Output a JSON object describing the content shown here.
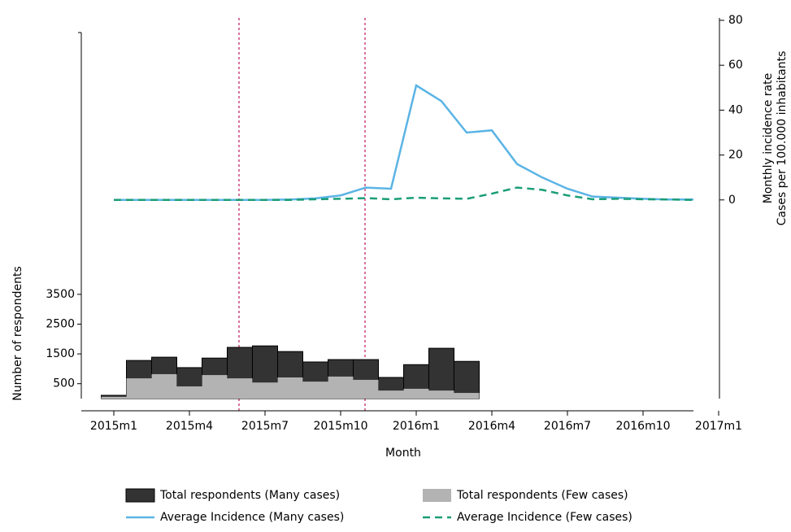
{
  "chart_data": {
    "type": "combo",
    "x_label": "Month",
    "y_label": "Number of respondents",
    "y2_label": [
      "Monthly incidence rate",
      "Cases per 100.000 inhabitants"
    ],
    "categories": [
      "2015m1",
      null,
      null,
      "2015m4",
      null,
      null,
      "2015m7",
      null,
      null,
      "2015m10",
      null,
      null,
      "2016m1",
      null,
      null,
      "2016m4",
      null,
      null,
      "2016m7",
      null,
      null,
      "2016m10",
      null,
      null,
      "2017m1"
    ],
    "ylim": [
      0,
      12700
    ],
    "yticks": [
      500,
      1500,
      2500,
      3500
    ],
    "y2lim": [
      -88.5,
      80
    ],
    "y2ticks": [
      0,
      20,
      40,
      60,
      80
    ],
    "legend": "bottom",
    "series": [
      {
        "name": "Total respondents (Many cases)",
        "type": "bar",
        "color": "#333333",
        "values": [
          110,
          1280,
          1390,
          1040,
          1360,
          1720,
          1770,
          1580,
          1230,
          1310,
          1310,
          710,
          1140,
          1690,
          1250,
          null,
          null,
          null,
          null,
          null,
          null,
          null,
          null,
          null,
          null
        ]
      },
      {
        "name": "Total respondents (Few cases)",
        "type": "bar",
        "color": "#b3b3b3",
        "values": [
          60,
          680,
          820,
          410,
          790,
          680,
          540,
          710,
          570,
          740,
          630,
          270,
          330,
          270,
          190,
          null,
          null,
          null,
          null,
          null,
          null,
          null,
          null,
          null,
          null
        ]
      },
      {
        "name": "Average Incidence (Many cases)",
        "type": "line",
        "axis": "y2",
        "color": "#5bb4e5",
        "values": [
          0,
          0,
          0,
          0,
          0,
          0,
          0,
          0.2,
          0.7,
          2,
          5.5,
          5,
          51,
          44,
          30,
          31,
          16,
          10,
          5,
          1.5,
          1,
          0.5,
          0.2,
          0.2,
          null
        ]
      },
      {
        "name": "Average Incidence (Few cases)",
        "type": "line",
        "axis": "y2",
        "color": "#1a9e77",
        "dashed": true,
        "values": [
          0,
          0,
          0,
          0,
          0,
          0,
          0,
          0,
          0.3,
          0.5,
          0.8,
          0.3,
          1,
          0.7,
          0.5,
          2.8,
          5.5,
          4.5,
          2,
          0.3,
          0.5,
          0.3,
          0.2,
          0,
          null
        ]
      }
    ]
  }
}
